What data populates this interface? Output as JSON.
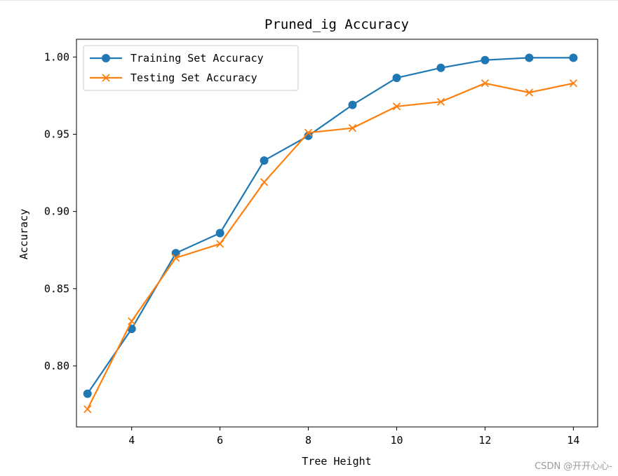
{
  "chart_data": {
    "type": "line",
    "title": "Pruned_ig Accuracy",
    "xlabel": "Tree Height",
    "ylabel": "Accuracy",
    "xlim": [
      2.75,
      14.55
    ],
    "ylim": [
      0.7605,
      1.0115
    ],
    "xticks": [
      4,
      6,
      8,
      10,
      12,
      14
    ],
    "yticks": [
      0.8,
      0.85,
      0.9,
      0.95,
      1.0
    ],
    "ytick_labels": [
      "0.80",
      "0.85",
      "0.90",
      "0.95",
      "1.00"
    ],
    "x": [
      3,
      4,
      5,
      6,
      7,
      8,
      9,
      10,
      11,
      12,
      13,
      14
    ],
    "series": [
      {
        "name": "Training Set Accuracy",
        "color": "#1f77b4",
        "marker": "circle",
        "values": [
          0.782,
          0.824,
          0.873,
          0.886,
          0.933,
          0.949,
          0.969,
          0.9865,
          0.993,
          0.998,
          0.9995,
          0.9995
        ]
      },
      {
        "name": "Testing Set Accuracy",
        "color": "#ff7f0e",
        "marker": "x",
        "values": [
          0.772,
          0.829,
          0.87,
          0.879,
          0.919,
          0.951,
          0.954,
          0.968,
          0.971,
          0.983,
          0.977,
          0.983
        ]
      }
    ],
    "legend_position": "top-left",
    "grid": false
  },
  "watermark": "CSDN @开开心心-"
}
